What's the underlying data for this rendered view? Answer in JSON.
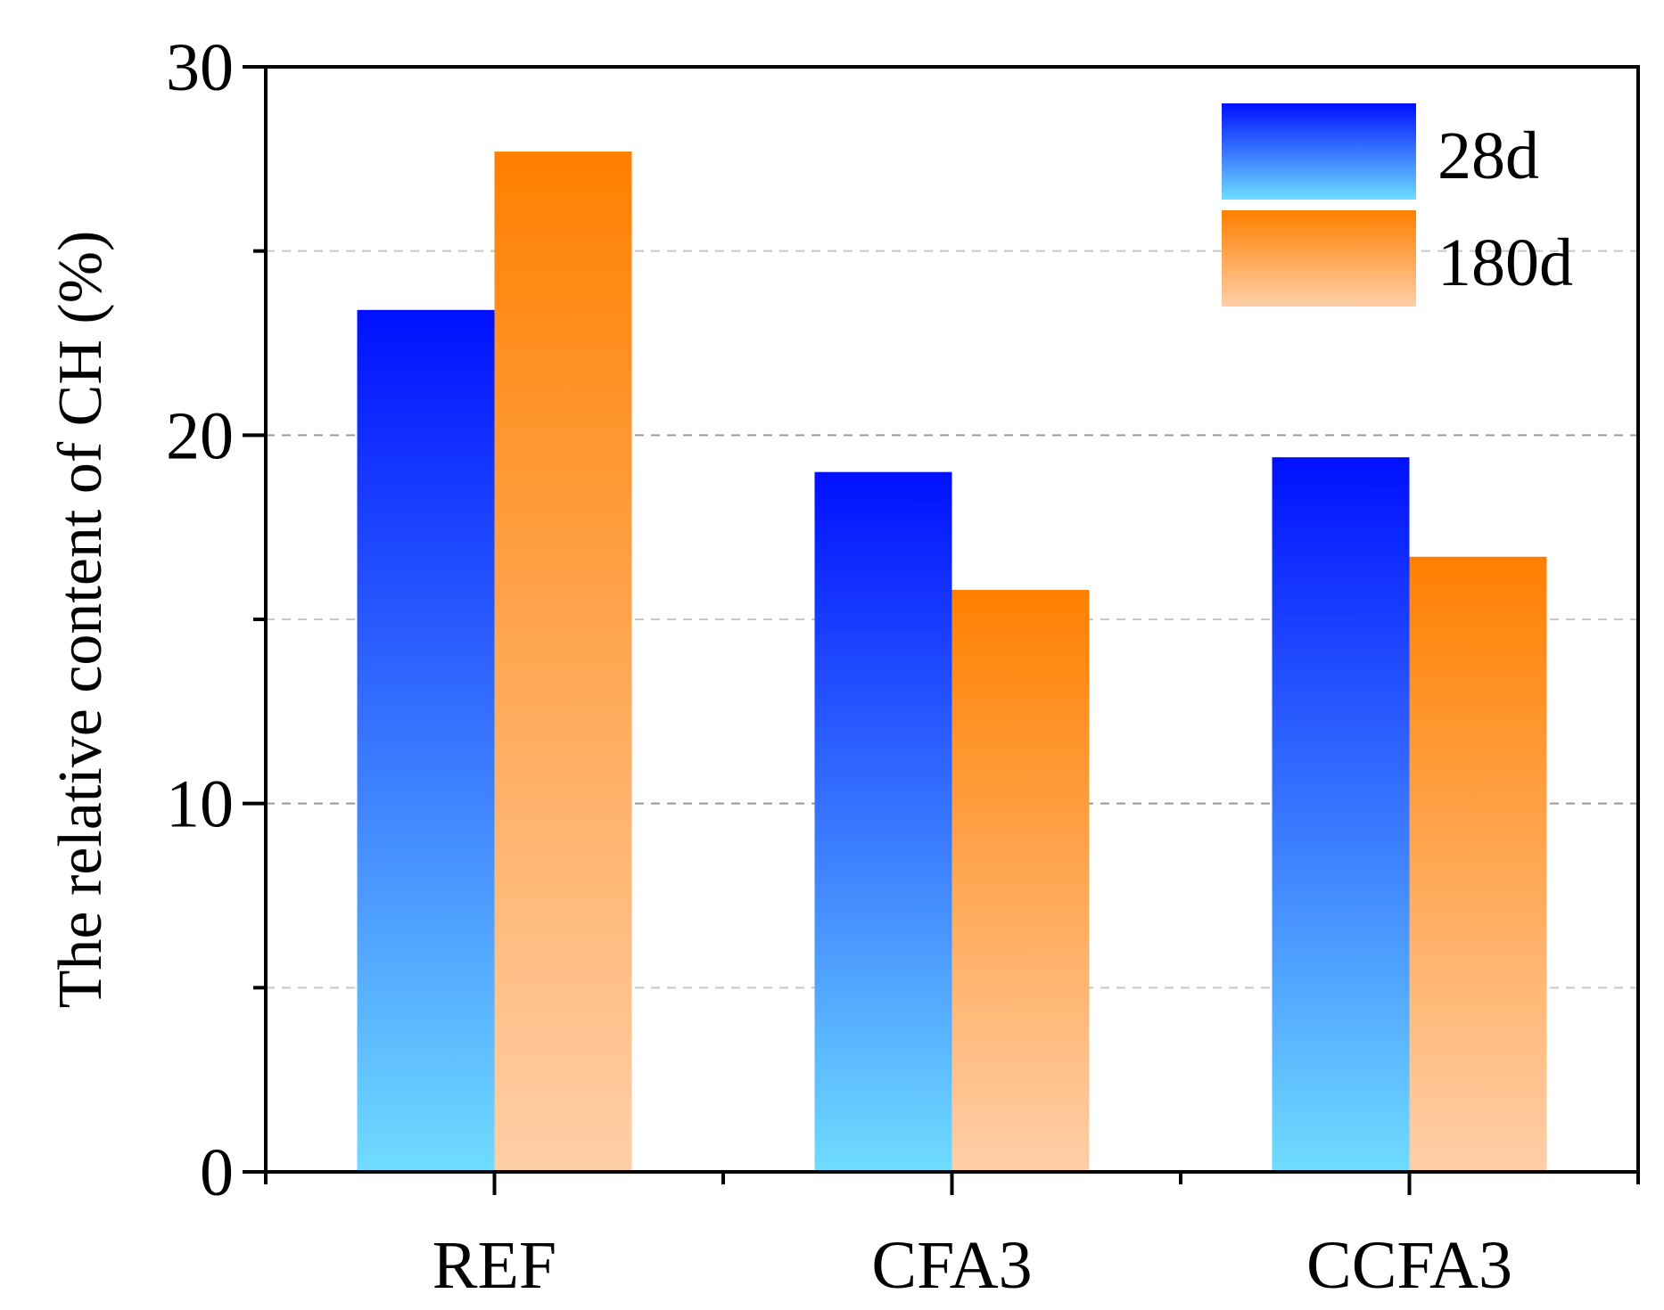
{
  "chart_data": {
    "type": "bar",
    "title": "",
    "xlabel": "",
    "ylabel": "The relative content of CH (%)",
    "categories": [
      "REF",
      "CFA3",
      "CCFA3"
    ],
    "series": [
      {
        "name": "28d",
        "values": [
          23.4,
          19.0,
          19.4
        ],
        "gradient": [
          "#0010ff",
          "#6fdcff"
        ]
      },
      {
        "name": "180d",
        "values": [
          27.7,
          15.8,
          16.7
        ],
        "gradient": [
          "#ff8000",
          "#ffcfa8"
        ]
      }
    ],
    "ylim": [
      0,
      30
    ],
    "yticks": [
      "0",
      "10",
      "20",
      "30"
    ],
    "grid": "dashed horizontal",
    "legend_position": "top-right"
  }
}
